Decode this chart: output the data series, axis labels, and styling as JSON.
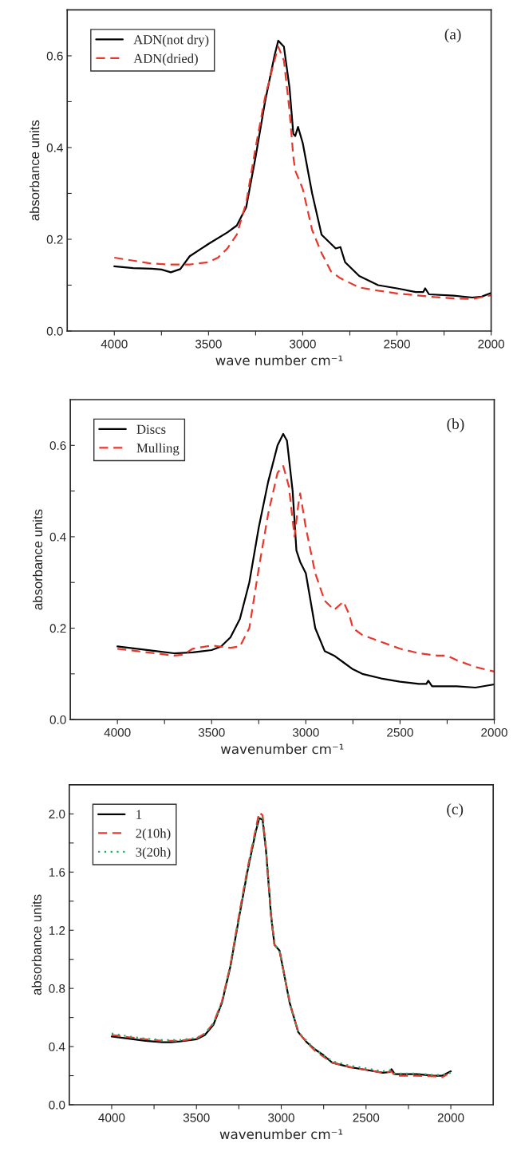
{
  "chart_data": [
    {
      "type": "line",
      "xlabel": "wave number cm⁻¹",
      "ylabel": "absorbance units",
      "annotations": [
        "(a)"
      ],
      "legend": "top left",
      "xlim": [
        4250,
        2000
      ],
      "ylim": [
        0,
        0.7
      ],
      "xticks": [
        4000,
        {
          "value": 3750,
          "label": null
        },
        3500,
        {
          "value": 3250,
          "label": null
        },
        3000,
        {
          "value": 2750,
          "label": null
        },
        2500,
        {
          "value": 2250,
          "label": null
        },
        2000
      ],
      "yticks": [
        {
          "value": 0,
          "label": "0.0"
        },
        {
          "value": 0.1,
          "label": null
        },
        0.2,
        {
          "value": 0.3,
          "label": null
        },
        0.4,
        {
          "value": 0.5,
          "label": null
        },
        0.6
      ],
      "series": [
        {
          "name": "ADN(not dry)",
          "color": "#000000",
          "line_style": "solid",
          "x": [
            4000,
            3900,
            3800,
            3750,
            3700,
            3650,
            3600,
            3500,
            3400,
            3350,
            3300,
            3250,
            3200,
            3150,
            3130,
            3100,
            3070,
            3050,
            3040,
            3025,
            3000,
            2950,
            2900,
            2850,
            2825,
            2800,
            2775,
            2700,
            2600,
            2500,
            2400,
            2360,
            2350,
            2330,
            2200,
            2100,
            2050,
            2000
          ],
          "values": [
            0.141,
            0.137,
            0.136,
            0.134,
            0.128,
            0.135,
            0.163,
            0.19,
            0.215,
            0.23,
            0.27,
            0.38,
            0.5,
            0.6,
            0.633,
            0.62,
            0.53,
            0.43,
            0.425,
            0.445,
            0.41,
            0.3,
            0.21,
            0.19,
            0.18,
            0.183,
            0.15,
            0.12,
            0.1,
            0.093,
            0.085,
            0.085,
            0.093,
            0.08,
            0.077,
            0.073,
            0.075,
            0.083
          ]
        },
        {
          "name": "ADN(dried)",
          "color": "#e8372c",
          "line_style": "dashed",
          "x": [
            4000,
            3800,
            3700,
            3600,
            3500,
            3450,
            3400,
            3350,
            3300,
            3250,
            3200,
            3150,
            3130,
            3100,
            3070,
            3050,
            3040,
            3000,
            2950,
            2900,
            2850,
            2800,
            2700,
            2600,
            2500,
            2400,
            2300,
            2200,
            2100,
            2000
          ],
          "values": [
            0.16,
            0.147,
            0.145,
            0.145,
            0.15,
            0.16,
            0.18,
            0.21,
            0.28,
            0.4,
            0.51,
            0.59,
            0.62,
            0.59,
            0.48,
            0.38,
            0.35,
            0.31,
            0.22,
            0.17,
            0.13,
            0.115,
            0.095,
            0.088,
            0.082,
            0.078,
            0.074,
            0.071,
            0.07,
            0.078
          ]
        }
      ]
    },
    {
      "type": "line",
      "xlabel": "wavenumber cm⁻¹",
      "ylabel": "absorbance units",
      "annotations": [
        "(b)"
      ],
      "legend": "top left",
      "xlim": [
        4250,
        2000
      ],
      "ylim": [
        0,
        0.7
      ],
      "xticks": [
        4000,
        {
          "value": 3750,
          "label": null
        },
        3500,
        {
          "value": 3250,
          "label": null
        },
        3000,
        {
          "value": 2750,
          "label": null
        },
        2500,
        {
          "value": 2250,
          "label": null
        },
        2000
      ],
      "yticks": [
        {
          "value": 0,
          "label": "0.0"
        },
        {
          "value": 0.1,
          "label": null
        },
        0.2,
        {
          "value": 0.3,
          "label": null
        },
        0.4,
        {
          "value": 0.5,
          "label": null
        },
        0.6
      ],
      "series": [
        {
          "name": "Discs",
          "color": "#000000",
          "line_style": "solid",
          "x": [
            4000,
            3800,
            3700,
            3600,
            3500,
            3450,
            3400,
            3350,
            3300,
            3250,
            3200,
            3150,
            3120,
            3100,
            3070,
            3050,
            3030,
            3000,
            2950,
            2900,
            2850,
            2800,
            2750,
            2700,
            2600,
            2500,
            2400,
            2360,
            2350,
            2330,
            2200,
            2100,
            2000
          ],
          "values": [
            0.16,
            0.15,
            0.145,
            0.147,
            0.152,
            0.16,
            0.18,
            0.22,
            0.3,
            0.42,
            0.52,
            0.6,
            0.625,
            0.61,
            0.5,
            0.37,
            0.345,
            0.32,
            0.2,
            0.15,
            0.14,
            0.125,
            0.11,
            0.1,
            0.09,
            0.083,
            0.078,
            0.078,
            0.085,
            0.073,
            0.073,
            0.07,
            0.077
          ]
        },
        {
          "name": "Mulling",
          "color": "#e8372c",
          "line_style": "dashed",
          "x": [
            4000,
            3900,
            3800,
            3700,
            3650,
            3600,
            3500,
            3400,
            3350,
            3300,
            3250,
            3200,
            3150,
            3120,
            3090,
            3060,
            3040,
            3030,
            3000,
            2950,
            2900,
            2850,
            2800,
            2770,
            2750,
            2700,
            2600,
            2500,
            2400,
            2300,
            2250,
            2200,
            2100,
            2000
          ],
          "values": [
            0.155,
            0.15,
            0.145,
            0.14,
            0.142,
            0.155,
            0.162,
            0.157,
            0.16,
            0.2,
            0.33,
            0.45,
            0.54,
            0.555,
            0.51,
            0.4,
            0.47,
            0.495,
            0.42,
            0.32,
            0.26,
            0.24,
            0.258,
            0.23,
            0.2,
            0.185,
            0.17,
            0.155,
            0.145,
            0.14,
            0.14,
            0.13,
            0.115,
            0.105
          ]
        }
      ]
    },
    {
      "type": "line",
      "xlabel": "wavenumber cm⁻¹",
      "ylabel": "absorbance units",
      "annotations": [
        "(c)"
      ],
      "legend": "top left",
      "xlim": [
        4250,
        1750
      ],
      "ylim": [
        0,
        2.2
      ],
      "xticks": [
        4000,
        {
          "value": 3750,
          "label": null
        },
        3500,
        {
          "value": 3250,
          "label": null
        },
        3000,
        {
          "value": 2750,
          "label": null
        },
        2500,
        {
          "value": 2250,
          "label": null
        },
        2000
      ],
      "yticks": [
        {
          "value": 0,
          "label": "0.0"
        },
        {
          "value": 0.2,
          "label": null
        },
        0.4,
        {
          "value": 0.6,
          "label": null
        },
        0.8,
        {
          "value": 1.0,
          "label": null
        },
        1.2,
        {
          "value": 1.4,
          "label": null
        },
        1.6,
        {
          "value": 1.8,
          "label": null
        },
        {
          "value": 2,
          "label": "2.0"
        }
      ],
      "series": [
        {
          "name": "1",
          "color": "#000000",
          "line_style": "solid",
          "x": [
            4000,
            3900,
            3800,
            3700,
            3650,
            3600,
            3500,
            3450,
            3400,
            3350,
            3300,
            3250,
            3200,
            3150,
            3130,
            3110,
            3090,
            3060,
            3040,
            3010,
            3000,
            2950,
            2900,
            2850,
            2800,
            2750,
            2700,
            2600,
            2500,
            2400,
            2360,
            2350,
            2330,
            2200,
            2100,
            2050,
            2000
          ],
          "values": [
            0.47,
            0.455,
            0.44,
            0.43,
            0.43,
            0.435,
            0.45,
            0.48,
            0.55,
            0.7,
            0.95,
            1.28,
            1.6,
            1.88,
            1.97,
            1.96,
            1.75,
            1.3,
            1.1,
            1.06,
            1.0,
            0.7,
            0.5,
            0.43,
            0.38,
            0.34,
            0.29,
            0.26,
            0.24,
            0.22,
            0.225,
            0.245,
            0.21,
            0.21,
            0.2,
            0.2,
            0.23
          ]
        },
        {
          "name": "2(10h)",
          "color": "#e8372c",
          "line_style": "dashed",
          "x": [
            4000,
            3900,
            3800,
            3700,
            3600,
            3500,
            3450,
            3400,
            3350,
            3300,
            3250,
            3200,
            3150,
            3130,
            3110,
            3090,
            3060,
            3040,
            3010,
            3000,
            2950,
            2900,
            2850,
            2800,
            2750,
            2700,
            2600,
            2500,
            2400,
            2350,
            2330,
            2200,
            2100,
            2050,
            2020
          ],
          "values": [
            0.48,
            0.465,
            0.45,
            0.44,
            0.44,
            0.455,
            0.49,
            0.56,
            0.71,
            0.96,
            1.3,
            1.62,
            1.9,
            2.01,
            1.99,
            1.76,
            1.3,
            1.1,
            1.06,
            1.0,
            0.7,
            0.5,
            0.43,
            0.37,
            0.33,
            0.29,
            0.26,
            0.24,
            0.22,
            0.23,
            0.2,
            0.2,
            0.195,
            0.19,
            0.21
          ]
        },
        {
          "name": "3(20h)",
          "color": "#2ca86a",
          "line_style": "dotted",
          "x": [
            4000,
            3900,
            3800,
            3700,
            3600,
            3500,
            3450,
            3400,
            3350,
            3300,
            3250,
            3200,
            3150,
            3130,
            3110,
            3090,
            3060,
            3040,
            3010,
            3000,
            2950,
            2900,
            2850,
            2800,
            2750,
            2700,
            2600,
            2500,
            2400,
            2350,
            2330,
            2200,
            2100,
            2050,
            2000
          ],
          "values": [
            0.49,
            0.47,
            0.455,
            0.445,
            0.445,
            0.46,
            0.49,
            0.56,
            0.7,
            0.95,
            1.28,
            1.6,
            1.87,
            1.98,
            1.97,
            1.76,
            1.31,
            1.1,
            1.06,
            1.0,
            0.7,
            0.5,
            0.44,
            0.38,
            0.34,
            0.3,
            0.27,
            0.25,
            0.23,
            0.24,
            0.215,
            0.215,
            0.205,
            0.205,
            0.22
          ]
        }
      ]
    }
  ]
}
